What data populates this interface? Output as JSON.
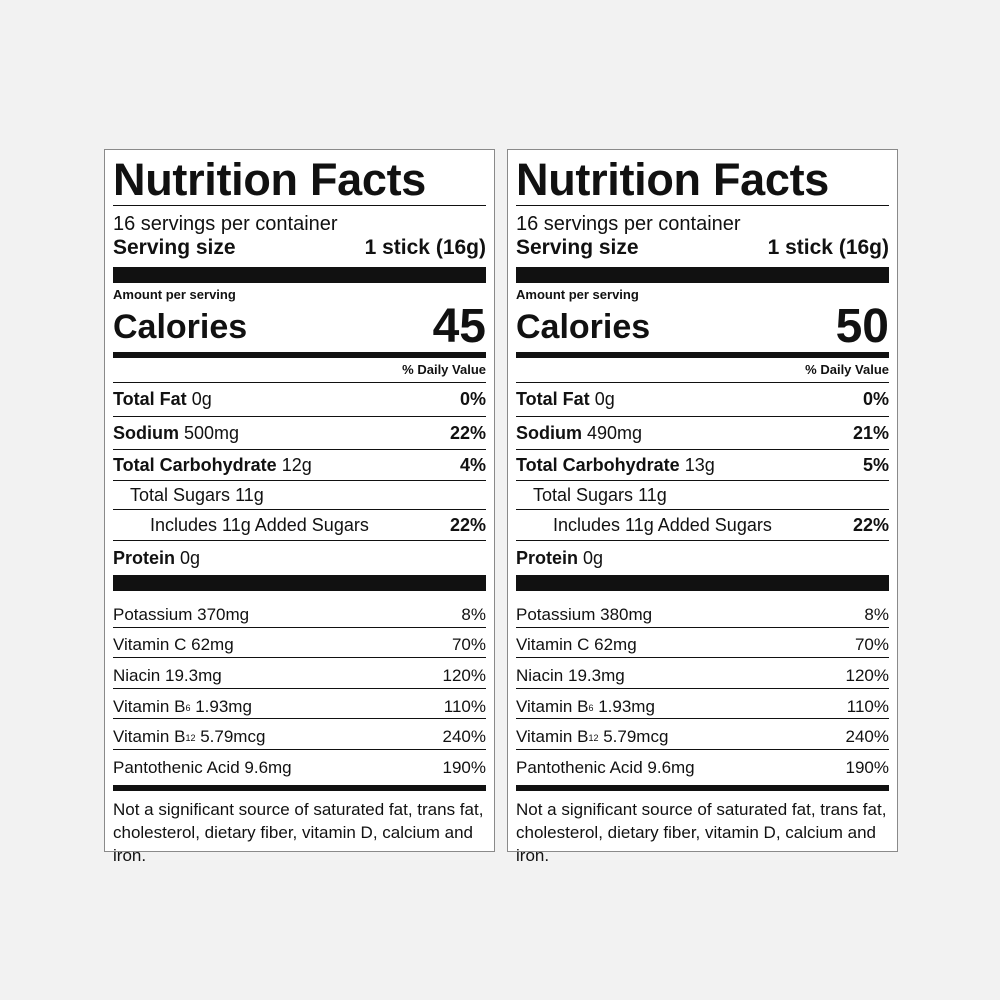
{
  "labels": [
    {
      "title": "Nutrition Facts",
      "servings": "16 servings per container",
      "serving_size_label": "Serving size",
      "serving_size": "1 stick (16g)",
      "amount_per_serving": "Amount per serving",
      "calories_label": "Calories",
      "calories": 45,
      "daily_value_header": "% Daily Value",
      "nutrients": [
        {
          "name": "Total Fat",
          "amount": "0g",
          "dv": "0%",
          "bold": true,
          "indent": 0
        },
        {
          "name": "Sodium",
          "amount": "500mg",
          "dv": "22%",
          "bold": true,
          "indent": 0
        },
        {
          "name": "Total Carbohydrate",
          "amount": "12g",
          "dv": "4%",
          "bold": true,
          "indent": 0
        },
        {
          "name": "Total Sugars",
          "amount": "11g",
          "bold": false,
          "indent": 1
        },
        {
          "name": "Includes 11g Added Sugars",
          "dv": "22%",
          "bold": false,
          "indent": 2
        },
        {
          "name": "Protein",
          "amount": "0g",
          "bold": true,
          "indent": 0
        }
      ],
      "vitamins": [
        {
          "name": "Potassium",
          "amount": "370mg",
          "dv": "8%"
        },
        {
          "name": "Vitamin C",
          "amount": "62mg",
          "dv": "70%"
        },
        {
          "name": "Niacin",
          "amount": "19.3mg",
          "dv": "120%"
        },
        {
          "name": "Vitamin B",
          "sub": "6",
          "amount": "1.93mg",
          "dv": "110%"
        },
        {
          "name": "Vitamin B",
          "sub": "12",
          "amount": "5.79mcg",
          "dv": "240%"
        },
        {
          "name": "Pantothenic Acid",
          "amount": "9.6mg",
          "dv": "190%"
        }
      ],
      "footnote": "Not a significant source of saturated fat, trans fat, cholesterol, dietary fiber, vitamin D, calcium and iron."
    },
    {
      "title": "Nutrition Facts",
      "servings": "16 servings per container",
      "serving_size_label": "Serving size",
      "serving_size": "1 stick (16g)",
      "amount_per_serving": "Amount per serving",
      "calories_label": "Calories",
      "calories": 50,
      "daily_value_header": "% Daily Value",
      "nutrients": [
        {
          "name": "Total Fat",
          "amount": "0g",
          "dv": "0%",
          "bold": true,
          "indent": 0
        },
        {
          "name": "Sodium",
          "amount": "490mg",
          "dv": "21%",
          "bold": true,
          "indent": 0
        },
        {
          "name": "Total Carbohydrate",
          "amount": "13g",
          "dv": "5%",
          "bold": true,
          "indent": 0
        },
        {
          "name": "Total Sugars",
          "amount": "11g",
          "bold": false,
          "indent": 1
        },
        {
          "name": "Includes 11g Added Sugars",
          "dv": "22%",
          "bold": false,
          "indent": 2
        },
        {
          "name": "Protein",
          "amount": "0g",
          "bold": true,
          "indent": 0
        }
      ],
      "vitamins": [
        {
          "name": "Potassium",
          "amount": "380mg",
          "dv": "8%"
        },
        {
          "name": "Vitamin C",
          "amount": "62mg",
          "dv": "70%"
        },
        {
          "name": "Niacin",
          "amount": "19.3mg",
          "dv": "120%"
        },
        {
          "name": "Vitamin B",
          "sub": "6",
          "amount": "1.93mg",
          "dv": "110%"
        },
        {
          "name": "Vitamin B",
          "sub": "12",
          "amount": "5.79mcg",
          "dv": "240%"
        },
        {
          "name": "Pantothenic Acid",
          "amount": "9.6mg",
          "dv": "190%"
        }
      ],
      "footnote": "Not a significant source of saturated fat, trans fat, cholesterol, dietary fiber, vitamin D, calcium and iron."
    }
  ]
}
